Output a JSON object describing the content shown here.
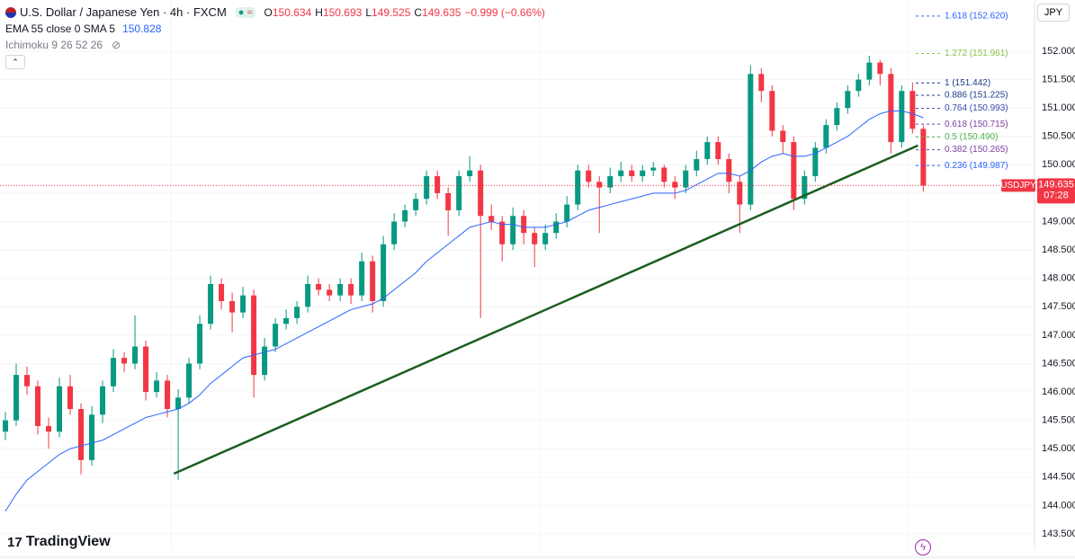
{
  "chart_data": {
    "type": "candlestick",
    "title": "U.S. Dollar / Japanese Yen · 4h · FXCM",
    "ohlc_keys": [
      "O",
      "H",
      "L",
      "C"
    ],
    "change_label": "−0.999 (−0.66%)",
    "indicator_1": "EMA 55 close 0 SMA 5",
    "indicator_2": "Ichimoku 9 26 52 26",
    "currency": "JPY",
    "symbol": "USDJPY",
    "countdown": "07:28",
    "brand": "TradingView",
    "up_color": "#089981",
    "down_color": "#f23645",
    "ema_color": "#2962ff",
    "xlim": [
      -0.5,
      95.3
    ],
    "ylim": [
      143.215,
      152.902
    ],
    "yticks": [
      {
        "value": 143.5,
        "label": "143.500"
      },
      {
        "value": 144,
        "label": "144.000"
      },
      {
        "value": 144.5,
        "label": "144.500"
      },
      {
        "value": 145,
        "label": "145.000"
      },
      {
        "value": 145.5,
        "label": "145.500"
      },
      {
        "value": 146,
        "label": "146.000"
      },
      {
        "value": 146.5,
        "label": "146.500"
      },
      {
        "value": 147,
        "label": "147.000"
      },
      {
        "value": 147.5,
        "label": "147.500"
      },
      {
        "value": 148,
        "label": "148.000"
      },
      {
        "value": 148.5,
        "label": "148.500"
      },
      {
        "value": 149,
        "label": "149.000"
      },
      {
        "value": 149.5,
        "label": "149.500"
      },
      {
        "value": 150,
        "label": "150.000"
      },
      {
        "value": 150.5,
        "label": "150.500"
      },
      {
        "value": 151,
        "label": "151.000"
      },
      {
        "value": 151.5,
        "label": "151.500"
      },
      {
        "value": 152,
        "label": "152.000"
      }
    ],
    "grid": true,
    "ohlc": [
      [
        145.3,
        145.65,
        145.15,
        145.5
      ],
      [
        145.5,
        146.5,
        145.4,
        146.3
      ],
      [
        146.3,
        146.45,
        145.95,
        146.1
      ],
      [
        146.1,
        146.2,
        145.25,
        145.4
      ],
      [
        145.4,
        145.55,
        145.0,
        145.3
      ],
      [
        145.3,
        146.25,
        145.2,
        146.1
      ],
      [
        146.1,
        146.3,
        145.6,
        145.7
      ],
      [
        145.7,
        145.8,
        144.55,
        144.8
      ],
      [
        144.8,
        145.75,
        144.7,
        145.6
      ],
      [
        145.6,
        146.2,
        145.45,
        146.1
      ],
      [
        146.1,
        146.75,
        146.0,
        146.6
      ],
      [
        146.6,
        146.7,
        146.35,
        146.5
      ],
      [
        146.5,
        147.35,
        146.4,
        146.8
      ],
      [
        146.8,
        146.9,
        145.85,
        146.0
      ],
      [
        146.0,
        146.35,
        145.9,
        146.2
      ],
      [
        146.2,
        146.3,
        145.55,
        145.7
      ],
      [
        145.7,
        146.05,
        144.45,
        145.9
      ],
      [
        145.9,
        146.6,
        145.8,
        146.5
      ],
      [
        146.5,
        147.35,
        146.4,
        147.2
      ],
      [
        147.2,
        148.05,
        147.1,
        147.9
      ],
      [
        147.9,
        148.0,
        147.45,
        147.6
      ],
      [
        147.6,
        147.75,
        147.05,
        147.4
      ],
      [
        147.4,
        147.85,
        147.3,
        147.7
      ],
      [
        147.7,
        147.8,
        145.9,
        146.3
      ],
      [
        146.3,
        146.95,
        146.2,
        146.8
      ],
      [
        146.8,
        147.3,
        146.7,
        147.2
      ],
      [
        147.2,
        147.45,
        147.1,
        147.3
      ],
      [
        147.3,
        147.6,
        147.2,
        147.5
      ],
      [
        147.5,
        148.05,
        147.4,
        147.9
      ],
      [
        147.9,
        148.0,
        147.7,
        147.8
      ],
      [
        147.8,
        147.9,
        147.6,
        147.7
      ],
      [
        147.7,
        148.0,
        147.6,
        147.9
      ],
      [
        147.9,
        148.0,
        147.55,
        147.7
      ],
      [
        147.7,
        148.45,
        147.6,
        148.3
      ],
      [
        148.3,
        148.4,
        147.4,
        147.6
      ],
      [
        147.6,
        148.75,
        147.5,
        148.6
      ],
      [
        148.6,
        149.15,
        148.5,
        149.0
      ],
      [
        149.0,
        149.3,
        148.9,
        149.2
      ],
      [
        149.2,
        149.5,
        149.1,
        149.4
      ],
      [
        149.4,
        149.9,
        149.3,
        149.8
      ],
      [
        149.8,
        149.9,
        149.4,
        149.5
      ],
      [
        149.5,
        149.6,
        148.75,
        149.2
      ],
      [
        149.2,
        149.9,
        149.1,
        149.8
      ],
      [
        149.8,
        150.15,
        149.7,
        149.9
      ],
      [
        149.9,
        150.0,
        147.3,
        149.1
      ],
      [
        149.1,
        149.3,
        148.85,
        149.0
      ],
      [
        149.0,
        149.1,
        148.3,
        148.6
      ],
      [
        148.6,
        149.25,
        148.5,
        149.1
      ],
      [
        149.1,
        149.2,
        148.6,
        148.8
      ],
      [
        148.8,
        148.9,
        148.2,
        148.6
      ],
      [
        148.6,
        148.95,
        148.5,
        148.8
      ],
      [
        148.8,
        149.15,
        148.7,
        149.0
      ],
      [
        149.0,
        149.45,
        148.9,
        149.3
      ],
      [
        149.3,
        150.0,
        149.2,
        149.9
      ],
      [
        149.9,
        150.0,
        149.6,
        149.7
      ],
      [
        149.7,
        149.8,
        148.8,
        149.6
      ],
      [
        149.6,
        149.95,
        149.5,
        149.8
      ],
      [
        149.8,
        150.05,
        149.7,
        149.9
      ],
      [
        149.9,
        150.0,
        149.7,
        149.8
      ],
      [
        149.8,
        150.0,
        149.7,
        149.9
      ],
      [
        149.9,
        150.05,
        149.8,
        149.95
      ],
      [
        149.95,
        150.0,
        149.6,
        149.7
      ],
      [
        149.7,
        149.8,
        149.4,
        149.6
      ],
      [
        149.6,
        150.0,
        149.5,
        149.9
      ],
      [
        149.9,
        150.25,
        149.8,
        150.1
      ],
      [
        150.1,
        150.5,
        150.0,
        150.4
      ],
      [
        150.4,
        150.5,
        150.0,
        150.1
      ],
      [
        150.1,
        150.2,
        149.5,
        149.7
      ],
      [
        149.7,
        149.8,
        148.8,
        149.3
      ],
      [
        149.3,
        151.75,
        149.2,
        151.6
      ],
      [
        151.6,
        151.7,
        151.1,
        151.3
      ],
      [
        151.3,
        151.4,
        150.5,
        150.6
      ],
      [
        150.6,
        150.7,
        150.2,
        150.4
      ],
      [
        150.4,
        150.5,
        149.2,
        149.4
      ],
      [
        149.4,
        149.9,
        149.3,
        149.8
      ],
      [
        149.8,
        150.4,
        149.7,
        150.3
      ],
      [
        150.3,
        150.8,
        150.2,
        150.7
      ],
      [
        150.7,
        151.1,
        150.6,
        151.0
      ],
      [
        151.0,
        151.4,
        150.9,
        151.3
      ],
      [
        151.3,
        151.6,
        151.2,
        151.5
      ],
      [
        151.5,
        151.92,
        151.4,
        151.8
      ],
      [
        151.8,
        151.85,
        151.4,
        151.6
      ],
      [
        151.6,
        151.7,
        150.2,
        150.4
      ],
      [
        150.4,
        151.4,
        150.3,
        151.3
      ],
      [
        151.3,
        151.45,
        150.55,
        150.634
      ],
      [
        150.634,
        150.693,
        149.525,
        149.635
      ]
    ],
    "ema": [
      143.9,
      144.2,
      144.45,
      144.6,
      144.75,
      144.9,
      145.0,
      145.05,
      145.1,
      145.15,
      145.25,
      145.35,
      145.45,
      145.55,
      145.6,
      145.65,
      145.7,
      145.8,
      145.95,
      146.15,
      146.3,
      146.45,
      146.6,
      146.65,
      146.7,
      146.75,
      146.85,
      146.95,
      147.05,
      147.15,
      147.25,
      147.35,
      147.45,
      147.5,
      147.55,
      147.65,
      147.8,
      147.95,
      148.1,
      148.3,
      148.45,
      148.6,
      148.75,
      148.9,
      148.95,
      149.0,
      148.95,
      148.95,
      148.9,
      148.9,
      148.9,
      148.95,
      149.0,
      149.1,
      149.2,
      149.25,
      149.3,
      149.35,
      149.4,
      149.45,
      149.5,
      149.5,
      149.5,
      149.55,
      149.65,
      149.75,
      149.85,
      149.85,
      149.8,
      149.9,
      150.05,
      150.15,
      150.2,
      150.15,
      150.15,
      150.2,
      150.3,
      150.4,
      150.5,
      150.65,
      150.8,
      150.9,
      150.95,
      150.95,
      150.9,
      150.828
    ],
    "trendline": {
      "x": [
        15.6,
        84.5
      ],
      "values": [
        144.56,
        150.34
      ],
      "color": "#1b5e20"
    },
    "fib": [
      {
        "label": "1.618 (152.620)",
        "value": 152.62,
        "color": "#2962ff"
      },
      {
        "label": "1.272 (151.961)",
        "value": 151.961,
        "color": "#8bc34a"
      },
      {
        "label": "1 (151.442)",
        "value": 151.442,
        "color": "#1e3a8a"
      },
      {
        "label": "0.886 (151.225)",
        "value": 151.225,
        "color": "#1e3a8a"
      },
      {
        "label": "0.764 (150.993)",
        "value": 150.993,
        "color": "#3949ab"
      },
      {
        "label": "0.618 (150.715)",
        "value": 150.715,
        "color": "#7b3fa0"
      },
      {
        "label": "0.5 (150.490)",
        "value": 150.49,
        "color": "#4caf50"
      },
      {
        "label": "0.382 (150.265)",
        "value": 150.265,
        "color": "#7b3fa0"
      },
      {
        "label": "0.236 (149.987)",
        "value": 149.987,
        "color": "#2962ff"
      }
    ]
  }
}
